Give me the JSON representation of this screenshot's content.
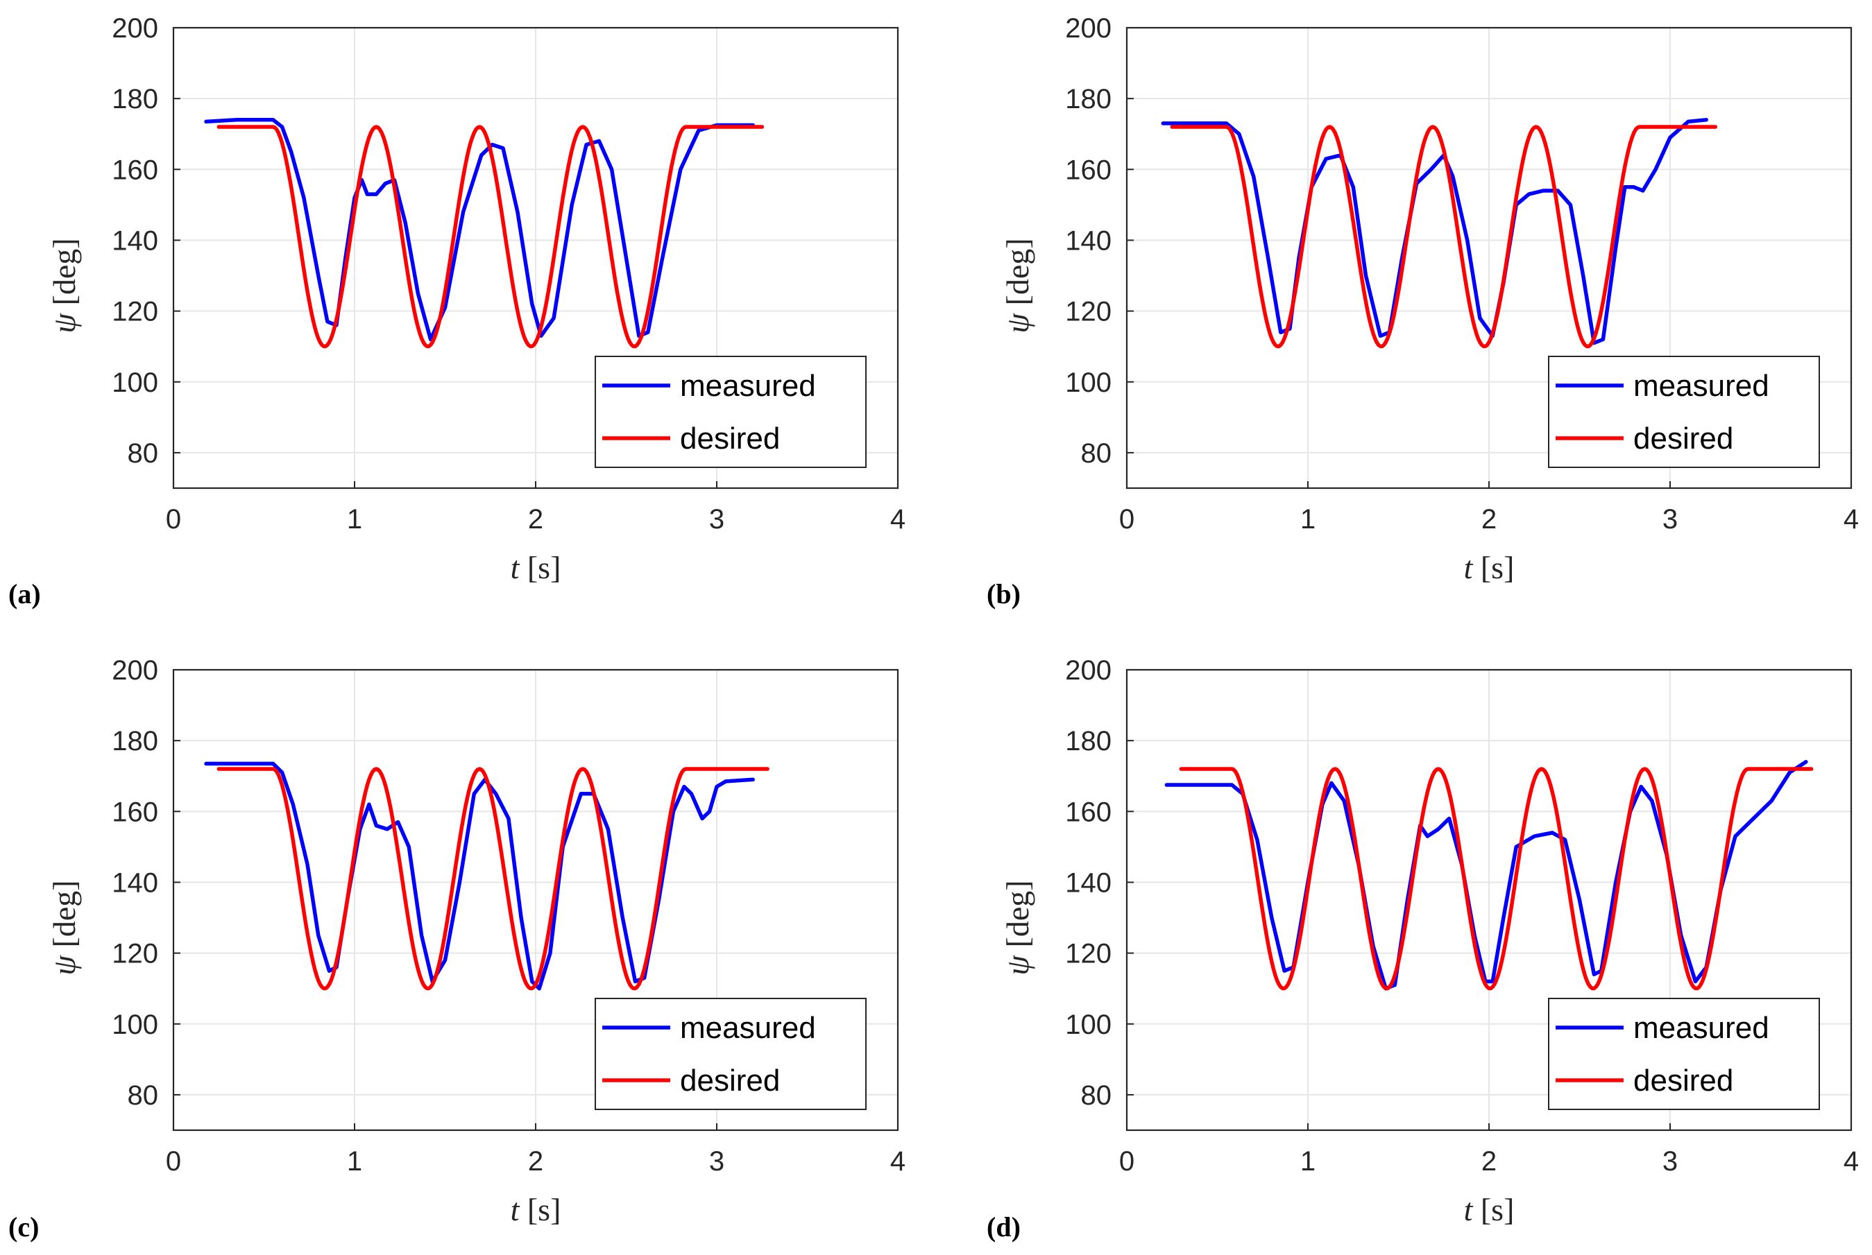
{
  "figure": {
    "panel_labels": [
      "(a)",
      "(b)",
      "(c)",
      "(d)"
    ],
    "colors": {
      "measured": "#0000ff",
      "desired": "#ff0000",
      "grid": "#e6e6e6",
      "axis": "#262626"
    }
  },
  "chart_data": [
    {
      "type": "line",
      "panel": "(a)",
      "xlabel": {
        "var": "t",
        "unit": "[s]"
      },
      "ylabel": {
        "var": "ψ",
        "unit": "[deg]"
      },
      "xlim": [
        0,
        4
      ],
      "ylim": [
        70,
        200
      ],
      "xticks": [
        0,
        1,
        2,
        3,
        4
      ],
      "yticks": [
        80,
        100,
        120,
        140,
        160,
        180,
        200
      ],
      "grid": true,
      "legend": {
        "position": "bottom-right",
        "entries": [
          "measured",
          "desired"
        ]
      },
      "series": [
        {
          "name": "measured",
          "color": "#0000ff",
          "x": [
            0.18,
            0.35,
            0.55,
            0.6,
            0.65,
            0.72,
            0.8,
            0.85,
            0.9,
            0.95,
            1.0,
            1.04,
            1.07,
            1.12,
            1.17,
            1.22,
            1.28,
            1.35,
            1.42,
            1.5,
            1.6,
            1.7,
            1.76,
            1.82,
            1.9,
            1.98,
            2.03,
            2.1,
            2.2,
            2.28,
            2.35,
            2.42,
            2.5,
            2.57,
            2.62,
            2.7,
            2.8,
            2.9,
            3.0,
            3.2
          ],
          "y": [
            173.5,
            174,
            174,
            172,
            165,
            152,
            130,
            117,
            116,
            135,
            152,
            157,
            153,
            153,
            156,
            157,
            145,
            125,
            112,
            121,
            148,
            164,
            167,
            166,
            148,
            122,
            113,
            118,
            150,
            167,
            168,
            160,
            135,
            113,
            114,
            135,
            160,
            171,
            172.5,
            172.5
          ]
        },
        {
          "name": "desired",
          "color": "#ff0000",
          "func": "cosine",
          "start": 0.25,
          "end": 3.25,
          "high": 172,
          "low": 110,
          "hold_until": 0.55,
          "period": 0.57,
          "cycles": 4
        }
      ]
    },
    {
      "type": "line",
      "panel": "(b)",
      "xlabel": {
        "var": "t",
        "unit": "[s]"
      },
      "ylabel": {
        "var": "ψ",
        "unit": "[deg]"
      },
      "xlim": [
        0,
        4
      ],
      "ylim": [
        70,
        200
      ],
      "xticks": [
        0,
        1,
        2,
        3,
        4
      ],
      "yticks": [
        80,
        100,
        120,
        140,
        160,
        180,
        200
      ],
      "grid": true,
      "legend": {
        "position": "bottom-right",
        "entries": [
          "measured",
          "desired"
        ]
      },
      "series": [
        {
          "name": "measured",
          "color": "#0000ff",
          "x": [
            0.2,
            0.35,
            0.55,
            0.62,
            0.7,
            0.78,
            0.85,
            0.9,
            0.95,
            1.02,
            1.1,
            1.18,
            1.25,
            1.32,
            1.4,
            1.45,
            1.52,
            1.6,
            1.68,
            1.75,
            1.8,
            1.88,
            1.95,
            2.02,
            2.08,
            2.15,
            2.22,
            2.3,
            2.38,
            2.45,
            2.52,
            2.58,
            2.63,
            2.7,
            2.75,
            2.8,
            2.85,
            2.92,
            3.0,
            3.1,
            3.2
          ],
          "y": [
            173,
            173,
            173,
            170,
            158,
            135,
            114,
            115,
            135,
            155,
            163,
            164,
            155,
            130,
            113,
            114,
            135,
            156,
            160,
            164,
            158,
            140,
            118,
            113,
            128,
            150,
            153,
            154,
            154,
            150,
            130,
            111,
            112,
            138,
            155,
            155,
            154,
            160,
            169,
            173.5,
            174
          ]
        },
        {
          "name": "desired",
          "color": "#ff0000",
          "func": "cosine",
          "start": 0.25,
          "end": 3.25,
          "high": 172,
          "low": 110,
          "hold_until": 0.55,
          "period": 0.57,
          "cycles": 4
        }
      ]
    },
    {
      "type": "line",
      "panel": "(c)",
      "xlabel": {
        "var": "t",
        "unit": "[s]"
      },
      "ylabel": {
        "var": "ψ",
        "unit": "[deg]"
      },
      "xlim": [
        0,
        4
      ],
      "ylim": [
        70,
        200
      ],
      "xticks": [
        0,
        1,
        2,
        3,
        4
      ],
      "yticks": [
        80,
        100,
        120,
        140,
        160,
        180,
        200
      ],
      "grid": true,
      "legend": {
        "position": "bottom-right",
        "entries": [
          "measured",
          "desired"
        ]
      },
      "series": [
        {
          "name": "measured",
          "color": "#0000ff",
          "x": [
            0.18,
            0.35,
            0.55,
            0.6,
            0.66,
            0.74,
            0.8,
            0.86,
            0.9,
            0.96,
            1.03,
            1.08,
            1.12,
            1.18,
            1.24,
            1.3,
            1.37,
            1.43,
            1.5,
            1.58,
            1.66,
            1.72,
            1.78,
            1.85,
            1.92,
            1.98,
            2.02,
            2.08,
            2.15,
            2.25,
            2.32,
            2.4,
            2.48,
            2.55,
            2.6,
            2.68,
            2.76,
            2.82,
            2.86,
            2.92,
            2.96,
            3.0,
            3.05,
            3.2
          ],
          "y": [
            173.5,
            173.5,
            173.5,
            171,
            162,
            145,
            125,
            115,
            116,
            135,
            155,
            162,
            156,
            155,
            157,
            150,
            125,
            112,
            118,
            140,
            165,
            169,
            165,
            158,
            130,
            112,
            110,
            120,
            150,
            165,
            165,
            155,
            130,
            112,
            113,
            135,
            160,
            167,
            165,
            158,
            160,
            167,
            168.5,
            169
          ]
        },
        {
          "name": "desired",
          "color": "#ff0000",
          "func": "cosine",
          "start": 0.25,
          "end": 3.28,
          "high": 172,
          "low": 110,
          "hold_until": 0.55,
          "period": 0.57,
          "cycles": 4
        }
      ]
    },
    {
      "type": "line",
      "panel": "(d)",
      "xlabel": {
        "var": "t",
        "unit": "[s]"
      },
      "ylabel": {
        "var": "ψ",
        "unit": "[deg]"
      },
      "xlim": [
        0,
        4
      ],
      "ylim": [
        70,
        200
      ],
      "xticks": [
        0,
        1,
        2,
        3,
        4
      ],
      "yticks": [
        80,
        100,
        120,
        140,
        160,
        180,
        200
      ],
      "grid": true,
      "legend": {
        "position": "bottom-right",
        "entries": [
          "measured",
          "desired"
        ]
      },
      "series": [
        {
          "name": "measured",
          "color": "#0000ff",
          "x": [
            0.22,
            0.4,
            0.58,
            0.64,
            0.72,
            0.8,
            0.87,
            0.92,
            1.0,
            1.08,
            1.13,
            1.2,
            1.28,
            1.36,
            1.43,
            1.48,
            1.55,
            1.62,
            1.66,
            1.72,
            1.78,
            1.85,
            1.92,
            1.98,
            2.02,
            2.08,
            2.15,
            2.25,
            2.35,
            2.42,
            2.5,
            2.58,
            2.62,
            2.7,
            2.78,
            2.84,
            2.9,
            2.98,
            3.06,
            3.14,
            3.2,
            3.28,
            3.36,
            3.46,
            3.56,
            3.66,
            3.75
          ],
          "y": [
            167.5,
            167.5,
            167.5,
            165,
            152,
            130,
            115,
            116,
            140,
            162,
            168,
            163,
            145,
            122,
            110,
            111,
            135,
            156,
            153,
            155,
            158,
            145,
            125,
            112,
            112,
            130,
            150,
            153,
            154,
            152,
            135,
            114,
            115,
            140,
            160,
            167,
            163,
            148,
            125,
            112,
            116,
            138,
            153,
            158,
            163,
            171,
            174
          ]
        },
        {
          "name": "desired",
          "color": "#ff0000",
          "func": "cosine",
          "start": 0.3,
          "end": 3.78,
          "high": 172,
          "low": 110,
          "hold_until": 0.58,
          "period": 0.57,
          "cycles": 5
        }
      ]
    }
  ]
}
